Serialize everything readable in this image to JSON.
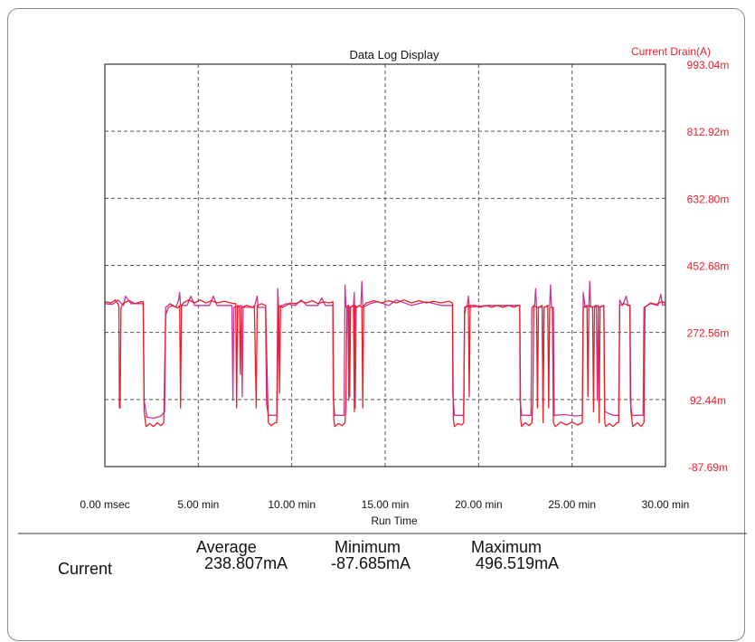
{
  "chart_data": {
    "type": "line",
    "title": "Data Log Display",
    "ylabel": "Current Drain(A)",
    "xlabel": "Run Time",
    "x_tick_labels": [
      "0.00 msec",
      "5.00 min",
      "10.00 min",
      "15.00 min",
      "20.00 min",
      "25.00 min",
      "30.00 min"
    ],
    "y_tick_labels": [
      "993.04m",
      "812.92m",
      "632.80m",
      "452.68m",
      "272.56m",
      "92.44m",
      "-87.69m"
    ],
    "xlim_min": [
      0,
      30
    ],
    "ylim_A": [
      -0.08769,
      0.99304
    ],
    "grid": true,
    "y_axis_side": "right",
    "series": [
      {
        "color": "#e8202a",
        "points": [
          [
            0.0,
            0.355
          ],
          [
            0.35,
            0.352
          ],
          [
            0.55,
            0.36
          ],
          [
            0.7,
            0.35
          ],
          [
            0.75,
            0.34
          ],
          [
            0.78,
            0.07
          ],
          [
            0.82,
            0.07
          ],
          [
            0.86,
            0.34
          ],
          [
            1.0,
            0.352
          ],
          [
            1.3,
            0.358
          ],
          [
            1.6,
            0.35
          ],
          [
            1.95,
            0.355
          ],
          [
            2.05,
            0.355
          ],
          [
            2.1,
            0.062
          ],
          [
            2.2,
            0.02
          ],
          [
            2.4,
            0.028
          ],
          [
            2.6,
            0.02
          ],
          [
            2.8,
            0.03
          ],
          [
            3.0,
            0.022
          ],
          [
            3.15,
            0.03
          ],
          [
            3.25,
            0.32
          ],
          [
            3.4,
            0.34
          ],
          [
            3.6,
            0.345
          ],
          [
            3.9,
            0.338
          ],
          [
            4.0,
            0.345
          ],
          [
            4.05,
            0.07
          ],
          [
            4.1,
            0.345
          ],
          [
            4.2,
            0.352
          ],
          [
            4.5,
            0.36
          ],
          [
            4.8,
            0.352
          ],
          [
            5.1,
            0.36
          ],
          [
            5.4,
            0.352
          ],
          [
            5.7,
            0.358
          ],
          [
            6.0,
            0.352
          ],
          [
            6.4,
            0.356
          ],
          [
            6.9,
            0.35
          ],
          [
            7.0,
            0.35
          ],
          [
            7.05,
            0.07
          ],
          [
            7.1,
            0.345
          ],
          [
            7.2,
            0.34
          ],
          [
            7.25,
            0.16
          ],
          [
            7.3,
            0.34
          ],
          [
            7.6,
            0.345
          ],
          [
            7.9,
            0.34
          ],
          [
            8.0,
            0.345
          ],
          [
            8.1,
            0.07
          ],
          [
            8.15,
            0.345
          ],
          [
            8.4,
            0.35
          ],
          [
            8.6,
            0.345
          ],
          [
            8.7,
            0.12
          ],
          [
            8.75,
            0.03
          ],
          [
            8.9,
            0.022
          ],
          [
            9.1,
            0.03
          ],
          [
            9.2,
            0.03
          ],
          [
            9.3,
            0.345
          ],
          [
            9.35,
            0.11
          ],
          [
            9.4,
            0.345
          ],
          [
            9.5,
            0.34
          ],
          [
            9.7,
            0.345
          ],
          [
            9.9,
            0.352
          ],
          [
            10.2,
            0.35
          ],
          [
            10.5,
            0.356
          ],
          [
            10.8,
            0.352
          ],
          [
            11.1,
            0.358
          ],
          [
            11.4,
            0.35
          ],
          [
            11.7,
            0.355
          ],
          [
            12.0,
            0.352
          ],
          [
            12.2,
            0.355
          ],
          [
            12.25,
            0.04
          ],
          [
            12.3,
            0.02
          ],
          [
            12.5,
            0.028
          ],
          [
            12.7,
            0.022
          ],
          [
            12.85,
            0.03
          ],
          [
            12.9,
            0.08
          ],
          [
            12.95,
            0.34
          ],
          [
            13.05,
            0.345
          ],
          [
            13.1,
            0.1
          ],
          [
            13.15,
            0.34
          ],
          [
            13.3,
            0.345
          ],
          [
            13.35,
            0.06
          ],
          [
            13.4,
            0.345
          ],
          [
            13.5,
            0.34
          ],
          [
            13.6,
            0.345
          ],
          [
            13.75,
            0.34
          ],
          [
            13.8,
            0.07
          ],
          [
            13.85,
            0.345
          ],
          [
            14.0,
            0.352
          ],
          [
            14.4,
            0.358
          ],
          [
            14.8,
            0.352
          ],
          [
            15.2,
            0.358
          ],
          [
            15.6,
            0.352
          ],
          [
            16.0,
            0.36
          ],
          [
            16.4,
            0.352
          ],
          [
            16.8,
            0.358
          ],
          [
            17.2,
            0.352
          ],
          [
            17.6,
            0.356
          ],
          [
            18.0,
            0.352
          ],
          [
            18.4,
            0.356
          ],
          [
            18.6,
            0.352
          ],
          [
            18.65,
            0.04
          ],
          [
            18.7,
            0.02
          ],
          [
            18.9,
            0.028
          ],
          [
            19.1,
            0.024
          ],
          [
            19.2,
            0.03
          ],
          [
            19.25,
            0.32
          ],
          [
            19.3,
            0.34
          ],
          [
            19.45,
            0.345
          ],
          [
            19.5,
            0.1
          ],
          [
            19.55,
            0.345
          ],
          [
            19.8,
            0.345
          ],
          [
            20.1,
            0.34
          ],
          [
            20.4,
            0.345
          ],
          [
            20.7,
            0.34
          ],
          [
            21.0,
            0.345
          ],
          [
            21.3,
            0.34
          ],
          [
            21.6,
            0.345
          ],
          [
            21.9,
            0.34
          ],
          [
            22.1,
            0.345
          ],
          [
            22.2,
            0.345
          ],
          [
            22.25,
            0.04
          ],
          [
            22.3,
            0.02
          ],
          [
            22.5,
            0.03
          ],
          [
            22.7,
            0.022
          ],
          [
            22.85,
            0.03
          ],
          [
            22.9,
            0.09
          ],
          [
            22.95,
            0.345
          ],
          [
            23.1,
            0.34
          ],
          [
            23.15,
            0.07
          ],
          [
            23.2,
            0.34
          ],
          [
            23.4,
            0.345
          ],
          [
            23.45,
            0.03
          ],
          [
            23.5,
            0.34
          ],
          [
            23.7,
            0.345
          ],
          [
            23.75,
            0.07
          ],
          [
            23.8,
            0.34
          ],
          [
            23.95,
            0.34
          ],
          [
            24.0,
            0.03
          ],
          [
            24.1,
            0.02
          ],
          [
            24.4,
            0.032
          ],
          [
            24.7,
            0.024
          ],
          [
            25.0,
            0.032
          ],
          [
            25.3,
            0.024
          ],
          [
            25.55,
            0.03
          ],
          [
            25.6,
            0.34
          ],
          [
            25.8,
            0.345
          ],
          [
            25.85,
            0.1
          ],
          [
            25.9,
            0.345
          ],
          [
            26.1,
            0.34
          ],
          [
            26.15,
            0.06
          ],
          [
            26.2,
            0.34
          ],
          [
            26.4,
            0.345
          ],
          [
            26.45,
            0.03
          ],
          [
            26.5,
            0.34
          ],
          [
            26.7,
            0.345
          ],
          [
            26.75,
            0.03
          ],
          [
            26.8,
            0.02
          ],
          [
            27.0,
            0.028
          ],
          [
            27.2,
            0.02
          ],
          [
            27.4,
            0.03
          ],
          [
            27.5,
            0.03
          ],
          [
            27.55,
            0.345
          ],
          [
            27.8,
            0.35
          ],
          [
            28.0,
            0.345
          ],
          [
            28.1,
            0.345
          ],
          [
            28.15,
            0.06
          ],
          [
            28.25,
            0.02
          ],
          [
            28.5,
            0.03
          ],
          [
            28.7,
            0.02
          ],
          [
            28.85,
            0.03
          ],
          [
            28.9,
            0.34
          ],
          [
            29.2,
            0.352
          ],
          [
            29.5,
            0.348
          ],
          [
            29.8,
            0.355
          ],
          [
            30.0,
            0.352
          ]
        ]
      },
      {
        "color": "#cc3399",
        "points": [
          [
            0.0,
            0.35
          ],
          [
            0.4,
            0.348
          ],
          [
            0.7,
            0.36
          ],
          [
            1.0,
            0.345
          ],
          [
            1.1,
            0.37
          ],
          [
            1.4,
            0.35
          ],
          [
            2.05,
            0.35
          ],
          [
            2.1,
            0.09
          ],
          [
            2.25,
            0.045
          ],
          [
            2.6,
            0.042
          ],
          [
            3.0,
            0.048
          ],
          [
            3.2,
            0.06
          ],
          [
            3.25,
            0.34
          ],
          [
            3.5,
            0.35
          ],
          [
            3.8,
            0.34
          ],
          [
            3.95,
            0.36
          ],
          [
            4.0,
            0.38
          ],
          [
            4.05,
            0.345
          ],
          [
            4.4,
            0.345
          ],
          [
            4.6,
            0.37
          ],
          [
            4.8,
            0.345
          ],
          [
            5.6,
            0.345
          ],
          [
            5.8,
            0.37
          ],
          [
            6.0,
            0.345
          ],
          [
            6.8,
            0.345
          ],
          [
            6.85,
            0.09
          ],
          [
            6.9,
            0.34
          ],
          [
            7.3,
            0.345
          ],
          [
            7.35,
            0.1
          ],
          [
            7.4,
            0.34
          ],
          [
            8.0,
            0.34
          ],
          [
            8.15,
            0.37
          ],
          [
            8.2,
            0.34
          ],
          [
            8.6,
            0.34
          ],
          [
            8.65,
            0.08
          ],
          [
            8.75,
            0.05
          ],
          [
            9.2,
            0.05
          ],
          [
            9.25,
            0.39
          ],
          [
            9.3,
            0.34
          ],
          [
            9.7,
            0.35
          ],
          [
            10.2,
            0.345
          ],
          [
            10.5,
            0.36
          ],
          [
            10.8,
            0.345
          ],
          [
            11.4,
            0.345
          ],
          [
            11.6,
            0.365
          ],
          [
            11.8,
            0.345
          ],
          [
            12.2,
            0.345
          ],
          [
            12.22,
            0.1
          ],
          [
            12.3,
            0.05
          ],
          [
            12.8,
            0.05
          ],
          [
            12.85,
            0.4
          ],
          [
            12.9,
            0.34
          ],
          [
            13.0,
            0.345
          ],
          [
            13.05,
            0.09
          ],
          [
            13.1,
            0.34
          ],
          [
            13.3,
            0.345
          ],
          [
            13.35,
            0.38
          ],
          [
            13.4,
            0.07
          ],
          [
            13.45,
            0.34
          ],
          [
            13.7,
            0.345
          ],
          [
            13.75,
            0.41
          ],
          [
            13.8,
            0.34
          ],
          [
            14.2,
            0.35
          ],
          [
            14.6,
            0.355
          ],
          [
            15.2,
            0.345
          ],
          [
            15.6,
            0.36
          ],
          [
            16.4,
            0.345
          ],
          [
            17.2,
            0.355
          ],
          [
            18.0,
            0.345
          ],
          [
            18.6,
            0.345
          ],
          [
            18.62,
            0.11
          ],
          [
            18.7,
            0.05
          ],
          [
            19.2,
            0.05
          ],
          [
            19.25,
            0.34
          ],
          [
            19.4,
            0.345
          ],
          [
            19.45,
            0.37
          ],
          [
            19.5,
            0.34
          ],
          [
            20.4,
            0.345
          ],
          [
            21.3,
            0.345
          ],
          [
            22.2,
            0.345
          ],
          [
            22.22,
            0.09
          ],
          [
            22.3,
            0.05
          ],
          [
            22.8,
            0.05
          ],
          [
            22.85,
            0.34
          ],
          [
            23.0,
            0.345
          ],
          [
            23.05,
            0.39
          ],
          [
            23.1,
            0.34
          ],
          [
            23.4,
            0.34
          ],
          [
            23.45,
            0.08
          ],
          [
            23.5,
            0.34
          ],
          [
            23.8,
            0.345
          ],
          [
            23.85,
            0.4
          ],
          [
            23.9,
            0.34
          ],
          [
            24.0,
            0.34
          ],
          [
            24.05,
            0.05
          ],
          [
            24.6,
            0.052
          ],
          [
            25.2,
            0.048
          ],
          [
            25.55,
            0.05
          ],
          [
            25.6,
            0.38
          ],
          [
            25.7,
            0.34
          ],
          [
            25.9,
            0.345
          ],
          [
            25.95,
            0.41
          ],
          [
            26.0,
            0.34
          ],
          [
            26.3,
            0.345
          ],
          [
            26.35,
            0.09
          ],
          [
            26.4,
            0.34
          ],
          [
            26.7,
            0.345
          ],
          [
            26.75,
            0.06
          ],
          [
            27.2,
            0.05
          ],
          [
            27.5,
            0.05
          ],
          [
            27.55,
            0.36
          ],
          [
            27.7,
            0.345
          ],
          [
            27.9,
            0.37
          ],
          [
            28.0,
            0.345
          ],
          [
            28.1,
            0.345
          ],
          [
            28.12,
            0.09
          ],
          [
            28.2,
            0.05
          ],
          [
            28.8,
            0.05
          ],
          [
            28.85,
            0.34
          ],
          [
            29.2,
            0.35
          ],
          [
            29.6,
            0.345
          ],
          [
            29.75,
            0.375
          ],
          [
            29.85,
            0.345
          ],
          [
            30.0,
            0.348
          ]
        ]
      }
    ]
  },
  "stats": {
    "headers": {
      "average": "Average",
      "minimum": "Minimum",
      "maximum": "Maximum"
    },
    "row_label": "Current",
    "average": "238.807mA",
    "minimum": "-87.685mA",
    "maximum": "496.519mA"
  },
  "colors": {
    "axis_red": "#e8202a",
    "text": "#111111",
    "grid": "#555555"
  }
}
